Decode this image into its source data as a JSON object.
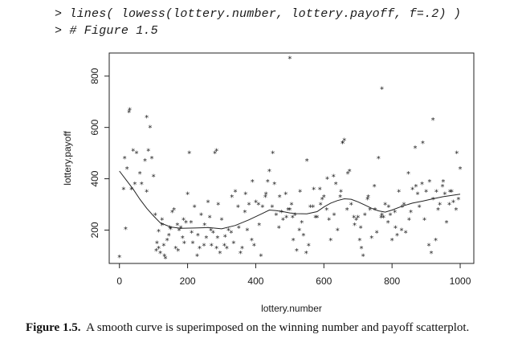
{
  "code": {
    "line1": {
      "prompt": "> ",
      "command": "lines( lowess(lottery.number, lottery.payoff, f=.2) )"
    },
    "line2": {
      "prompt": "> ",
      "command": "# Figure 1.5"
    }
  },
  "caption": {
    "label": "Figure 1.5.",
    "text": "A smooth curve is superimposed on the winning number and payoff scatterplot."
  },
  "chart_data": {
    "type": "scatter",
    "xlabel": "lottery.number",
    "ylabel": "lottery.payoff",
    "xlim": [
      -30,
      1040
    ],
    "ylim": [
      70,
      890
    ],
    "xticks": [
      0,
      200,
      400,
      600,
      800,
      1000
    ],
    "yticks": [
      200,
      400,
      600,
      800
    ],
    "marker": "*",
    "grid": false,
    "series": [
      {
        "kind": "points",
        "x": [
          0,
          12,
          15,
          18,
          22,
          28,
          35,
          40,
          45,
          50,
          60,
          65,
          75,
          80,
          85,
          90,
          95,
          100,
          105,
          110,
          115,
          120,
          125,
          130,
          140,
          150,
          160,
          170,
          180,
          190,
          200,
          205,
          210,
          220,
          230,
          240,
          250,
          260,
          270,
          280,
          285,
          290,
          300,
          310,
          320,
          330,
          340,
          350,
          360,
          370,
          380,
          390,
          400,
          410,
          420,
          430,
          440,
          450,
          460,
          470,
          480,
          490,
          500,
          505,
          510,
          520,
          530,
          540,
          550,
          560,
          570,
          580,
          590,
          600,
          610,
          620,
          630,
          640,
          650,
          660,
          670,
          680,
          690,
          700,
          710,
          720,
          730,
          740,
          750,
          760,
          770,
          780,
          790,
          800,
          810,
          820,
          830,
          840,
          850,
          860,
          870,
          880,
          890,
          900,
          910,
          920,
          930,
          940,
          950,
          960,
          970,
          980,
          990,
          1000,
          115,
          125,
          135,
          145,
          155,
          165,
          175,
          185,
          195,
          215,
          235,
          255,
          265,
          275,
          295,
          315,
          335,
          355,
          375,
          395,
          415,
          435,
          455,
          475,
          495,
          515,
          535,
          555,
          575,
          595,
          615,
          635,
          655,
          675,
          695,
          715,
          735,
          755,
          775,
          795,
          815,
          835,
          855,
          875,
          895,
          915,
          935,
          955,
          975,
          995,
          108,
          132,
          148,
          172,
          188,
          212,
          228,
          248,
          268,
          288,
          308,
          328,
          348,
          368,
          388,
          408,
          428,
          448,
          468,
          488,
          508,
          528,
          548,
          568,
          588,
          608,
          628,
          648,
          668,
          688,
          708,
          728,
          748,
          768,
          788,
          808,
          828,
          848,
          868,
          888,
          908,
          928,
          948,
          968,
          988,
          500,
          770,
          920,
          30,
          80,
          285,
          655,
          705
        ],
        "y": [
          95,
          360,
          480,
          205,
          440,
          660,
          360,
          510,
          380,
          500,
          420,
          380,
          470,
          350,
          510,
          600,
          480,
          410,
          260,
          150,
          195,
          110,
          220,
          140,
          160,
          205,
          280,
          220,
          210,
          150,
          340,
          500,
          230,
          290,
          180,
          260,
          220,
          310,
          140,
          500,
          130,
          300,
          240,
          175,
          200,
          330,
          350,
          210,
          130,
          340,
          300,
          390,
          310,
          220,
          290,
          340,
          430,
          500,
          260,
          330,
          240,
          250,
          280,
          300,
          160,
          120,
          350,
          180,
          470,
          290,
          360,
          250,
          300,
          330,
          400,
          160,
          260,
          200,
          350,
          550,
          420,
          300,
          220,
          250,
          130,
          260,
          330,
          170,
          280,
          480,
          260,
          300,
          290,
          160,
          210,
          350,
          290,
          190,
          240,
          360,
          370,
          290,
          540,
          350,
          390,
          320,
          350,
          300,
          390,
          230,
          350,
          310,
          500,
          440,
          130,
          240,
          90,
          180,
          270,
          130,
          200,
          170,
          230,
          150,
          130,
          170,
          250,
          190,
          110,
          130,
          150,
          110,
          200,
          140,
          100,
          390,
          380,
          270,
          280,
          260,
          230,
          140,
          250,
          320,
          240,
          380,
          540,
          430,
          240,
          100,
          280,
          190,
          250,
          260,
          180,
          300,
          270,
          340,
          240,
          110,
          280,
          340,
          350,
          320,
          120,
          100,
          210,
          120,
          240,
          190,
          100,
          140,
          200,
          170,
          140,
          190,
          290,
          270,
          160,
          300,
          330,
          290,
          210,
          340,
          250,
          200,
          110,
          290,
          360,
          280,
          410,
          330,
          280,
          250,
          210,
          320,
          370,
          250,
          230,
          270,
          200,
          420,
          520,
          380,
          140,
          160,
          370,
          300,
          280,
          870,
          750,
          630,
          670,
          640,
          510,
          540,
          160
        ]
      },
      {
        "kind": "lowess",
        "x": [
          0,
          20,
          40,
          60,
          80,
          100,
          120,
          150,
          180,
          220,
          260,
          300,
          340,
          380,
          420,
          440,
          460,
          480,
          500,
          520,
          550,
          580,
          600,
          620,
          640,
          660,
          680,
          700,
          720,
          740,
          760,
          780,
          800,
          830,
          860,
          890,
          920,
          950,
          980,
          1000
        ],
        "y": [
          430,
          395,
          360,
          320,
          285,
          255,
          228,
          212,
          207,
          208,
          210,
          205,
          218,
          240,
          265,
          278,
          276,
          272,
          267,
          264,
          263,
          272,
          290,
          305,
          315,
          322,
          320,
          310,
          298,
          285,
          275,
          270,
          278,
          293,
          305,
          313,
          322,
          330,
          336,
          340
        ]
      }
    ]
  }
}
